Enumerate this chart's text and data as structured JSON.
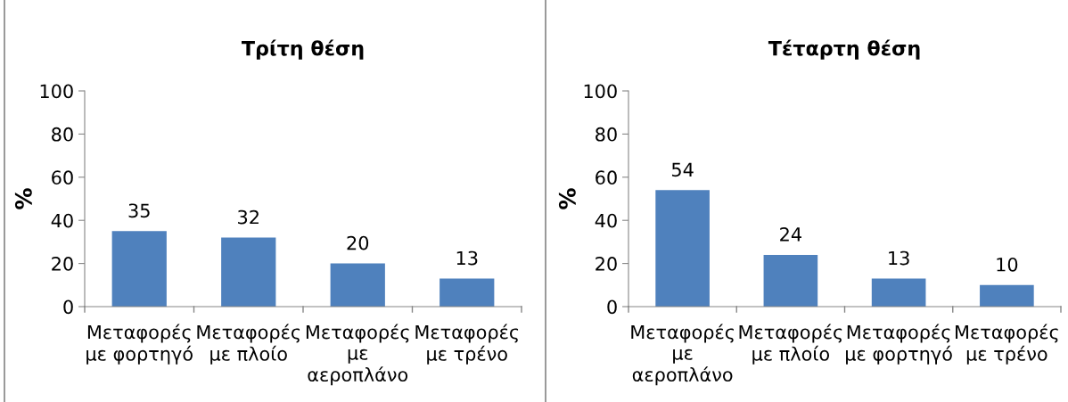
{
  "chart_data": [
    {
      "type": "bar",
      "title": "Τρίτη θέση",
      "ylabel": "%",
      "categories": [
        "Μεταφορές\nμε φορτηγό",
        "Μεταφορές\nμε πλοίο",
        "Μεταφορές\nμε\nαεροπλάνο",
        "Μεταφορές\nμε τρένο"
      ],
      "values": [
        35,
        32,
        20,
        13
      ],
      "color": "#4f81bd",
      "ylim": [
        0,
        100
      ],
      "yticks": [
        0,
        20,
        40,
        60,
        80,
        100
      ],
      "data_labels": true,
      "grid": false,
      "legend": false
    },
    {
      "type": "bar",
      "title": "Τέταρτη θέση",
      "ylabel": "%",
      "categories": [
        "Μεταφορές\nμε\nαεροπλάνο",
        "Μεταφορές\nμε πλοίο",
        "Μεταφορές\nμε φορτηγό",
        "Μεταφορές\nμε τρένο"
      ],
      "values": [
        54,
        24,
        13,
        10
      ],
      "color": "#4f81bd",
      "ylim": [
        0,
        100
      ],
      "yticks": [
        0,
        20,
        40,
        60,
        80,
        100
      ],
      "data_labels": true,
      "grid": false,
      "legend": false
    }
  ]
}
